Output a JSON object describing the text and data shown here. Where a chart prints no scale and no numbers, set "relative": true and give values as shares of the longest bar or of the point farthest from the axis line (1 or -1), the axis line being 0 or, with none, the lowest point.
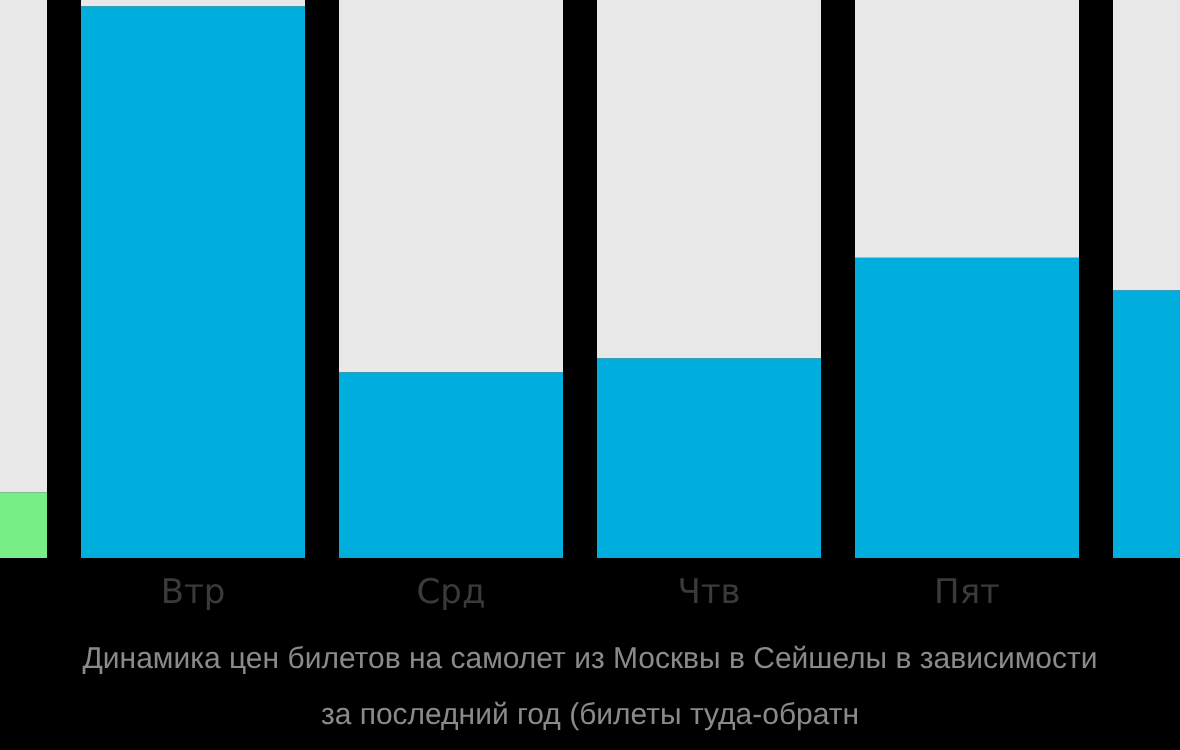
{
  "chart_data": {
    "type": "bar",
    "title": "Динамика цен билетов на самолет из Москвы в Сейшелы в зависимости",
    "subtitle": "за последний год (билеты туда-обратн",
    "categories": [
      null,
      "Втр",
      "Срд",
      "Чтв",
      "Пят",
      null
    ],
    "stacked": true,
    "series": [
      {
        "colors": [
          "#77ee88",
          "#00aede",
          "#00aede",
          "#00aede",
          "#00aede",
          "#00aede"
        ],
        "values": [
          0.118,
          0.989,
          0.333,
          0.358,
          0.538,
          0.48
        ]
      },
      {
        "color": "#e8e8e8",
        "values": [
          0.882,
          0.011,
          0.667,
          0.642,
          0.462,
          0.52
        ]
      }
    ],
    "relative": true
  }
}
